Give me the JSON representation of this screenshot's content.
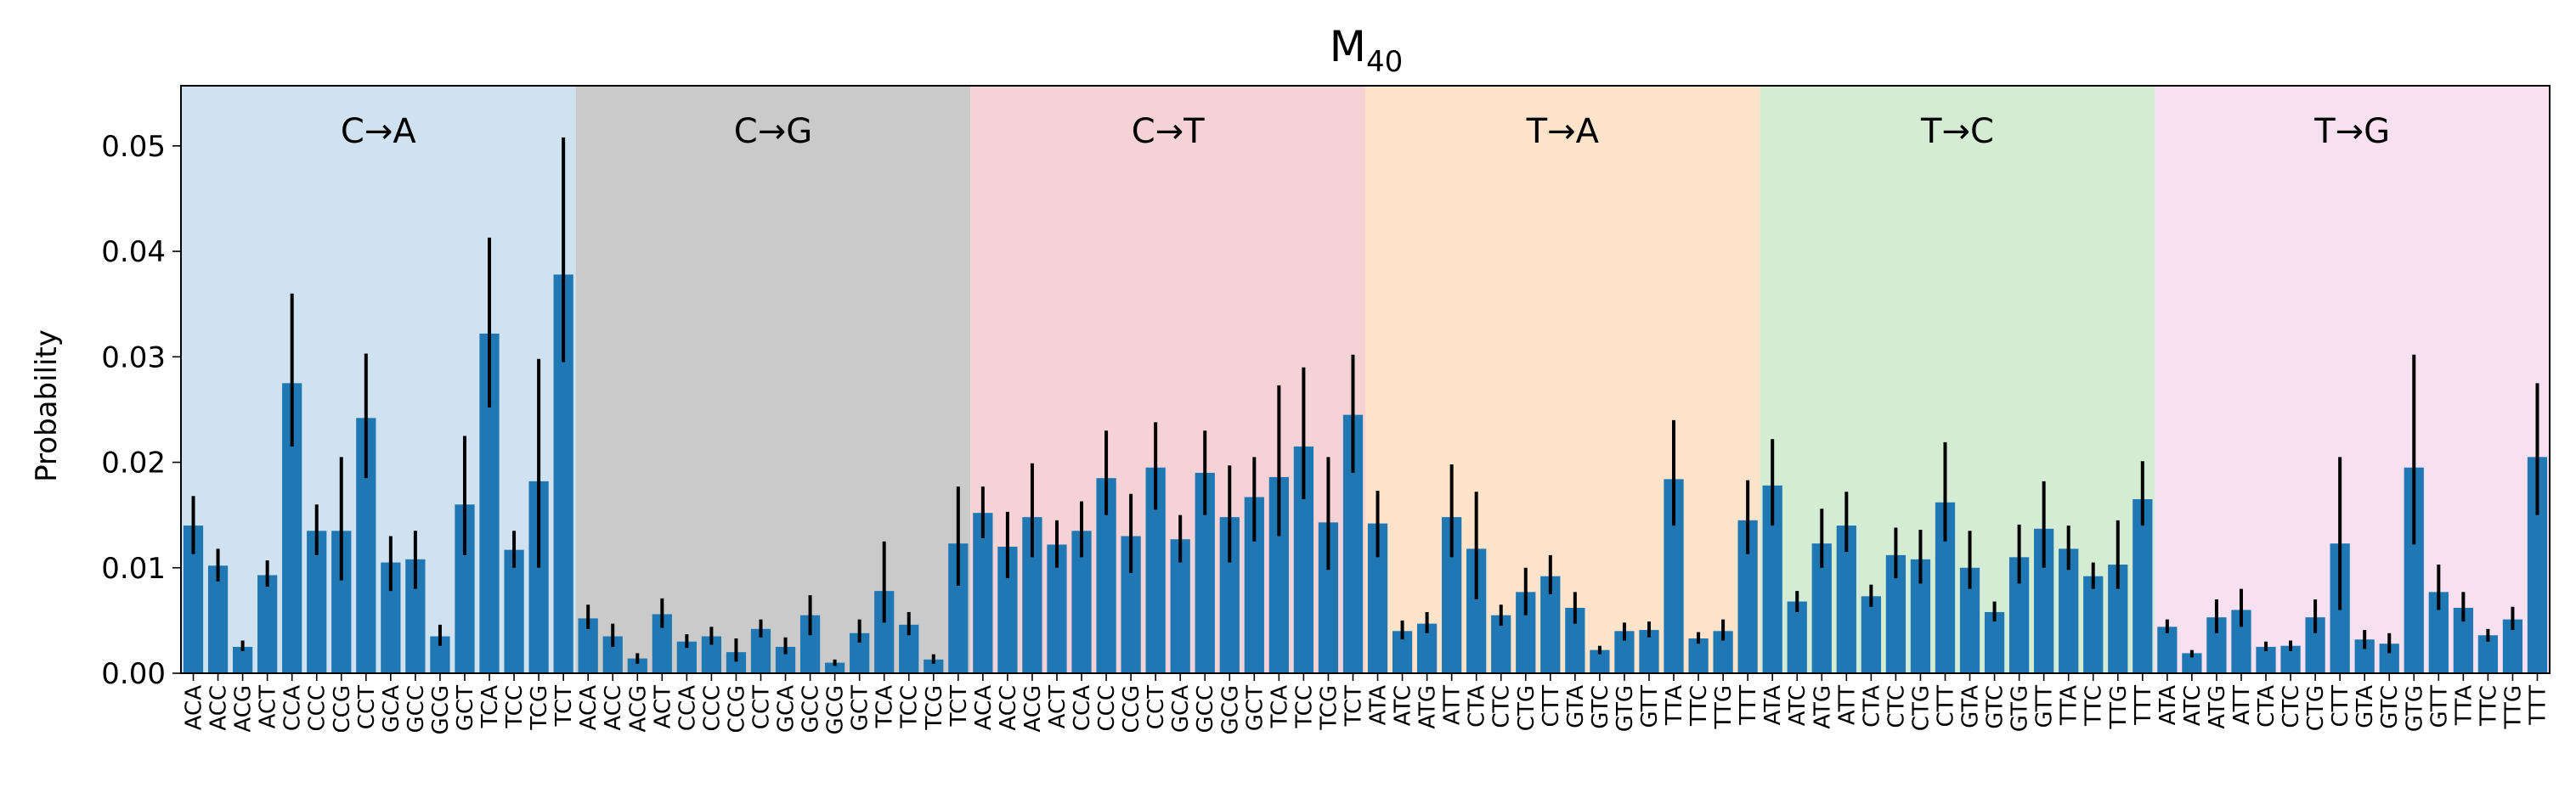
{
  "chart_data": {
    "type": "bar",
    "title": "M",
    "title_subscript": "40",
    "ylabel": "Probability",
    "xlabel": "",
    "ylim": [
      0,
      0.0557
    ],
    "yticks": [
      0.0,
      0.01,
      0.02,
      0.03,
      0.04,
      0.05
    ],
    "ytick_labels": [
      "0.00",
      "0.01",
      "0.02",
      "0.03",
      "0.04",
      "0.05"
    ],
    "grid": false,
    "bar_color": "#1f77b4",
    "error_color": "#000000",
    "groups": [
      {
        "label": "C→A",
        "color": "#d0e2f0",
        "categories": [
          "ACA",
          "ACC",
          "ACG",
          "ACT",
          "CCA",
          "CCC",
          "CCG",
          "CCT",
          "GCA",
          "GCC",
          "GCG",
          "GCT",
          "TCA",
          "TCC",
          "TCG",
          "TCT"
        ],
        "values": [
          0.014,
          0.0102,
          0.0025,
          0.0093,
          0.0275,
          0.0135,
          0.0135,
          0.0242,
          0.0105,
          0.0108,
          0.0035,
          0.016,
          0.0322,
          0.0117,
          0.0182,
          0.0378
        ],
        "err_low": [
          0.0113,
          0.0087,
          0.0021,
          0.0082,
          0.0215,
          0.0112,
          0.0088,
          0.0185,
          0.0078,
          0.008,
          0.0026,
          0.0112,
          0.0252,
          0.01,
          0.01,
          0.0295
        ],
        "err_high": [
          0.0168,
          0.0118,
          0.0031,
          0.0107,
          0.036,
          0.016,
          0.0205,
          0.0303,
          0.013,
          0.0135,
          0.0046,
          0.0225,
          0.0413,
          0.0135,
          0.0298,
          0.0508
        ]
      },
      {
        "label": "C→G",
        "color": "#cacaca",
        "categories": [
          "ACA",
          "ACC",
          "ACG",
          "ACT",
          "CCA",
          "CCC",
          "CCG",
          "CCT",
          "GCA",
          "GCC",
          "GCG",
          "GCT",
          "TCA",
          "TCC",
          "TCG",
          "TCT"
        ],
        "values": [
          0.0052,
          0.0035,
          0.0014,
          0.0056,
          0.003,
          0.0035,
          0.002,
          0.0042,
          0.0025,
          0.0055,
          0.001,
          0.0038,
          0.0078,
          0.0046,
          0.0013,
          0.0123
        ],
        "err_low": [
          0.0042,
          0.0025,
          0.0009,
          0.0043,
          0.0024,
          0.0027,
          0.0011,
          0.0034,
          0.0018,
          0.0036,
          0.0007,
          0.0029,
          0.0048,
          0.0036,
          0.0009,
          0.0083
        ],
        "err_high": [
          0.0065,
          0.0047,
          0.0019,
          0.0071,
          0.0037,
          0.0044,
          0.0033,
          0.0051,
          0.0034,
          0.0074,
          0.0013,
          0.0051,
          0.0125,
          0.0058,
          0.0018,
          0.0177
        ]
      },
      {
        "label": "C→T",
        "color": "#f5d2d6",
        "categories": [
          "ACA",
          "ACC",
          "ACG",
          "ACT",
          "CCA",
          "CCC",
          "CCG",
          "CCT",
          "GCA",
          "GCC",
          "GCG",
          "GCT",
          "TCA",
          "TCC",
          "TCG",
          "TCT"
        ],
        "values": [
          0.0152,
          0.012,
          0.0148,
          0.0122,
          0.0135,
          0.0185,
          0.013,
          0.0195,
          0.0127,
          0.019,
          0.0148,
          0.0167,
          0.0186,
          0.0215,
          0.0143,
          0.0245
        ],
        "err_low": [
          0.0128,
          0.009,
          0.011,
          0.01,
          0.011,
          0.015,
          0.0095,
          0.0155,
          0.0105,
          0.015,
          0.0105,
          0.0125,
          0.013,
          0.0165,
          0.0098,
          0.019
        ],
        "err_high": [
          0.0177,
          0.0153,
          0.0199,
          0.0145,
          0.0163,
          0.023,
          0.017,
          0.0238,
          0.015,
          0.023,
          0.0197,
          0.0205,
          0.0273,
          0.029,
          0.0205,
          0.0302
        ]
      },
      {
        "label": "T→A",
        "color": "#fde3ca",
        "categories": [
          "ATA",
          "ATC",
          "ATG",
          "ATT",
          "CTA",
          "CTC",
          "CTG",
          "CTT",
          "GTA",
          "GTC",
          "GTG",
          "GTT",
          "TTA",
          "TTC",
          "TTG",
          "TTT"
        ],
        "values": [
          0.0142,
          0.004,
          0.0047,
          0.0148,
          0.0118,
          0.0055,
          0.0077,
          0.0092,
          0.0062,
          0.0022,
          0.004,
          0.0041,
          0.0184,
          0.0033,
          0.004,
          0.0145
        ],
        "err_low": [
          0.011,
          0.0032,
          0.0038,
          0.011,
          0.007,
          0.0045,
          0.0055,
          0.0075,
          0.0047,
          0.0018,
          0.0031,
          0.0034,
          0.014,
          0.0028,
          0.0031,
          0.0113
        ],
        "err_high": [
          0.0173,
          0.005,
          0.0058,
          0.0198,
          0.0172,
          0.0065,
          0.01,
          0.0112,
          0.0077,
          0.0026,
          0.0048,
          0.0049,
          0.024,
          0.0039,
          0.0051,
          0.0183
        ]
      },
      {
        "label": "T→C",
        "color": "#d4ecd3",
        "categories": [
          "ATA",
          "ATC",
          "ATG",
          "ATT",
          "CTA",
          "CTC",
          "CTG",
          "CTT",
          "GTA",
          "GTC",
          "GTG",
          "GTT",
          "TTA",
          "TTC",
          "TTG",
          "TTT"
        ],
        "values": [
          0.0178,
          0.0068,
          0.0123,
          0.014,
          0.0073,
          0.0112,
          0.0108,
          0.0162,
          0.01,
          0.0058,
          0.011,
          0.0137,
          0.0118,
          0.0092,
          0.0103,
          0.0165
        ],
        "err_low": [
          0.014,
          0.0058,
          0.01,
          0.0115,
          0.0063,
          0.009,
          0.0085,
          0.0125,
          0.008,
          0.0049,
          0.0085,
          0.01,
          0.0098,
          0.008,
          0.008,
          0.014
        ],
        "err_high": [
          0.0222,
          0.0078,
          0.0156,
          0.0172,
          0.0084,
          0.0138,
          0.0136,
          0.0219,
          0.0135,
          0.0068,
          0.0141,
          0.0182,
          0.014,
          0.0105,
          0.0145,
          0.0201
        ]
      },
      {
        "label": "T→G",
        "color": "#f7e1f1",
        "categories": [
          "ATA",
          "ATC",
          "ATG",
          "ATT",
          "CTA",
          "CTC",
          "CTG",
          "CTT",
          "GTA",
          "GTC",
          "GTG",
          "GTT",
          "TTA",
          "TTC",
          "TTG",
          "TTT"
        ],
        "values": [
          0.0044,
          0.0019,
          0.0053,
          0.006,
          0.0025,
          0.0026,
          0.0053,
          0.0123,
          0.0032,
          0.0028,
          0.0195,
          0.0077,
          0.0062,
          0.0036,
          0.0051,
          0.0205
        ],
        "err_low": [
          0.0038,
          0.0015,
          0.0038,
          0.0044,
          0.0021,
          0.0021,
          0.0038,
          0.006,
          0.0023,
          0.0019,
          0.0122,
          0.006,
          0.0049,
          0.003,
          0.0041,
          0.015
        ],
        "err_high": [
          0.0051,
          0.0022,
          0.007,
          0.008,
          0.003,
          0.0031,
          0.007,
          0.0205,
          0.0041,
          0.0038,
          0.0302,
          0.0103,
          0.0077,
          0.0042,
          0.0063,
          0.0275
        ]
      }
    ]
  }
}
